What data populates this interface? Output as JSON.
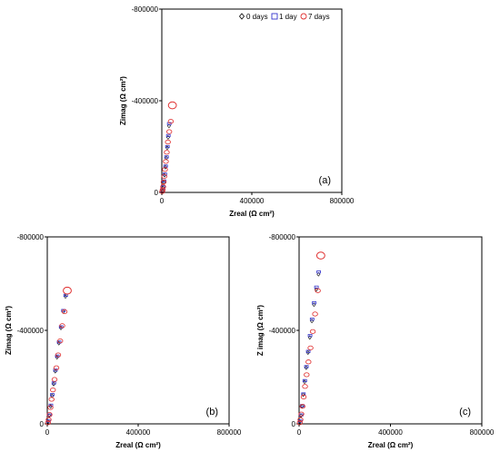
{
  "chart_data": [
    {
      "type": "scatter",
      "panel_label": "(a)",
      "xlabel": "Zreal (Ω cm²)",
      "ylabel": "Zimag (Ω cm²)",
      "xlim": [
        0,
        800000
      ],
      "ylim": [
        0,
        -800000
      ],
      "x_ticks": [
        "0",
        "400000",
        "800000"
      ],
      "y_ticks": [
        "-800000",
        "-400000",
        "0"
      ],
      "grid": false,
      "legend_position": "top-right",
      "series": [
        {
          "name": "0 days",
          "marker": "diamond",
          "color": "#000000",
          "x": [
            3000,
            6000,
            9000,
            12000,
            16000,
            20000,
            24000,
            28000,
            32000
          ],
          "y": [
            -5000,
            -20000,
            -45000,
            -75000,
            -110000,
            -150000,
            -195000,
            -240000,
            -290000
          ]
        },
        {
          "name": "1 day",
          "marker": "square",
          "color": "#3333cc",
          "x": [
            3500,
            6500,
            10000,
            13500,
            17000,
            21000,
            25000,
            29000,
            33000
          ],
          "y": [
            -8000,
            -25000,
            -50000,
            -80000,
            -115000,
            -155000,
            -200000,
            -248000,
            -300000
          ]
        },
        {
          "name": "7 days",
          "marker": "circle",
          "color": "#e03030",
          "x": [
            2000,
            4000,
            6000,
            8000,
            11000,
            14000,
            18000,
            22000,
            27000,
            33000,
            40000,
            47000
          ],
          "y": [
            -4000,
            -12000,
            -25000,
            -45000,
            -70000,
            -100000,
            -135000,
            -175000,
            -220000,
            -265000,
            -310000,
            -380000
          ]
        }
      ]
    },
    {
      "type": "scatter",
      "panel_label": "(b)",
      "xlabel": "Zreal (Ω cm²)",
      "ylabel": "Zimag (Ω cm²)",
      "xlim": [
        0,
        800000
      ],
      "ylim": [
        0,
        -800000
      ],
      "x_ticks": [
        "0",
        "400000",
        "800000"
      ],
      "y_ticks": [
        "-800000",
        "-400000",
        "0"
      ],
      "grid": false,
      "series": [
        {
          "name": "0 days",
          "marker": "diamond",
          "color": "#000000",
          "x": [
            4000,
            9000,
            15000,
            21000,
            28000,
            35000,
            43000,
            51000,
            60000,
            70000,
            80000
          ],
          "y": [
            -10000,
            -35000,
            -75000,
            -120000,
            -170000,
            -225000,
            -285000,
            -345000,
            -410000,
            -480000,
            -545000
          ]
        },
        {
          "name": "1 day",
          "marker": "square",
          "color": "#3333cc",
          "x": [
            5000,
            10000,
            16000,
            22000,
            29000,
            36000,
            44000,
            52000,
            61000,
            71000,
            81000
          ],
          "y": [
            -12000,
            -38000,
            -80000,
            -125000,
            -175000,
            -230000,
            -290000,
            -350000,
            -415000,
            -485000,
            -550000
          ]
        },
        {
          "name": "7 days",
          "marker": "circle",
          "color": "#e03030",
          "x": [
            3000,
            6000,
            10000,
            14000,
            19000,
            25000,
            32000,
            40000,
            48000,
            57000,
            66000,
            76000,
            88000
          ],
          "y": [
            -5000,
            -18000,
            -40000,
            -70000,
            -105000,
            -145000,
            -190000,
            -240000,
            -295000,
            -355000,
            -420000,
            -480000,
            -570000
          ]
        }
      ]
    },
    {
      "type": "scatter",
      "panel_label": "(c)",
      "xlabel": "Zreal (Ω cm²)",
      "ylabel": "Z imag (Ω cm²)",
      "xlim": [
        0,
        800000
      ],
      "ylim": [
        0,
        -800000
      ],
      "x_ticks": [
        "0",
        "400000",
        "800000"
      ],
      "y_ticks": [
        "-800000",
        "-400000",
        "0"
      ],
      "grid": false,
      "series": [
        {
          "name": "0 days",
          "marker": "diamond",
          "color": "#000000",
          "x": [
            4000,
            8000,
            13000,
            18000,
            24000,
            31000,
            39000,
            47000,
            56000,
            65000,
            75000,
            85000
          ],
          "y": [
            -10000,
            -35000,
            -75000,
            -125000,
            -180000,
            -240000,
            -305000,
            -370000,
            -440000,
            -510000,
            -575000,
            -640000
          ]
        },
        {
          "name": "1 day",
          "marker": "square",
          "color": "#3333cc",
          "x": [
            5000,
            9000,
            14000,
            19000,
            25000,
            32000,
            40000,
            48000,
            57000,
            66000,
            76000,
            86000
          ],
          "y": [
            -12000,
            -38000,
            -78000,
            -128000,
            -185000,
            -245000,
            -310000,
            -378000,
            -448000,
            -518000,
            -585000,
            -650000
          ]
        },
        {
          "name": "7 days",
          "marker": "circle",
          "color": "#e03030",
          "x": [
            3000,
            6000,
            10000,
            15000,
            20000,
            26000,
            33000,
            41000,
            50000,
            60000,
            70000,
            82000,
            95000
          ],
          "y": [
            -5000,
            -18000,
            -42000,
            -75000,
            -115000,
            -160000,
            -210000,
            -265000,
            -325000,
            -395000,
            -470000,
            -570000,
            -720000
          ]
        }
      ]
    }
  ]
}
